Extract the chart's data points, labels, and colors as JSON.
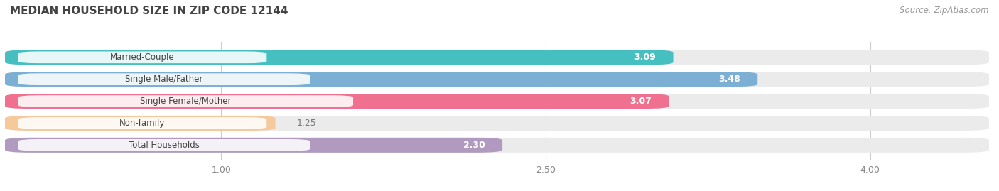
{
  "title": "MEDIAN HOUSEHOLD SIZE IN ZIP CODE 12144",
  "source": "Source: ZipAtlas.com",
  "categories": [
    "Married-Couple",
    "Single Male/Father",
    "Single Female/Mother",
    "Non-family",
    "Total Households"
  ],
  "values": [
    3.09,
    3.48,
    3.07,
    1.25,
    2.3
  ],
  "bar_colors": [
    "#45BFBF",
    "#7BAFD4",
    "#F07090",
    "#F5C99A",
    "#B09AC0"
  ],
  "bar_bg_color": "#EBEBEB",
  "xlim_left": 0.0,
  "xlim_right": 4.55,
  "xticks": [
    1.0,
    2.5,
    4.0
  ],
  "xticklabels": [
    "1.00",
    "2.50",
    "4.00"
  ],
  "title_fontsize": 11,
  "bar_height": 0.68,
  "bar_gap": 0.18,
  "value_inside_threshold": 2.0,
  "fig_bg": "#FFFFFF",
  "ax_bg": "#FFFFFF"
}
